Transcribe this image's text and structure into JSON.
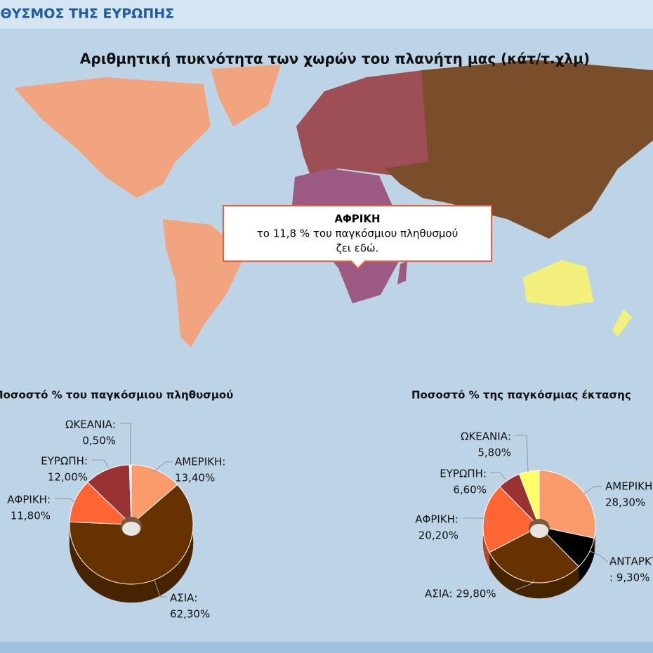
{
  "header": {
    "title": "ΠΛΗΘΥΣΜΟΣ ΤΗΣ ΕΥΡΩΠΗΣ"
  },
  "map": {
    "title": "Αριθμητική πυκνότητα των χωρών του πλανήτη μας (κάτ/τ.χλμ)",
    "tooltip": {
      "title": "ΑΦΡΙΚΗ",
      "lines": [
        "το 11,8 % του παγκόσμιου πληθυσμού",
        "ζει εδώ."
      ]
    }
  },
  "chart_data": [
    {
      "type": "pie",
      "title": "Ποσοστό % του παγκόσμιου πληθυσμού",
      "categories": [
        "ΑΜΕΡΙΚΗ:",
        "ΑΣΙΑ:",
        "ΑΦΡΙΚΗ:",
        "ΕΥΡΩΠΗ:",
        "ΩΚΕΑΝΙΑ:"
      ],
      "values": [
        13.4,
        62.3,
        11.8,
        12.0,
        0.5
      ],
      "value_labels": [
        "13,40%",
        "62,30%",
        "11,80%",
        "12,00%",
        "0,50%"
      ],
      "colors": [
        "#fb9a6a",
        "#663300",
        "#ff6633",
        "#993333",
        "#fff4e8"
      ]
    },
    {
      "type": "pie",
      "title": "Ποσοστό % της παγκόσμιας έκτασης",
      "categories": [
        "ΑΜΕΡΙΚΗ:",
        "ΑΝΤΑΡΚΤΙΚΗ",
        "ΑΣΙΑ:",
        "ΑΦΡΙΚΗ:",
        "ΕΥΡΩΠΗ:",
        "ΩΚΕΑΝΙΑ:"
      ],
      "values": [
        28.3,
        9.3,
        29.8,
        20.2,
        6.6,
        5.8
      ],
      "value_labels": [
        "28,30%",
        ": 9,30%",
        "29,80%",
        "20,20%",
        "6,60%",
        "5,80%"
      ],
      "colors": [
        "#fb9a6a",
        "#000000",
        "#663300",
        "#ff6633",
        "#993333",
        "#ffff66"
      ]
    }
  ]
}
